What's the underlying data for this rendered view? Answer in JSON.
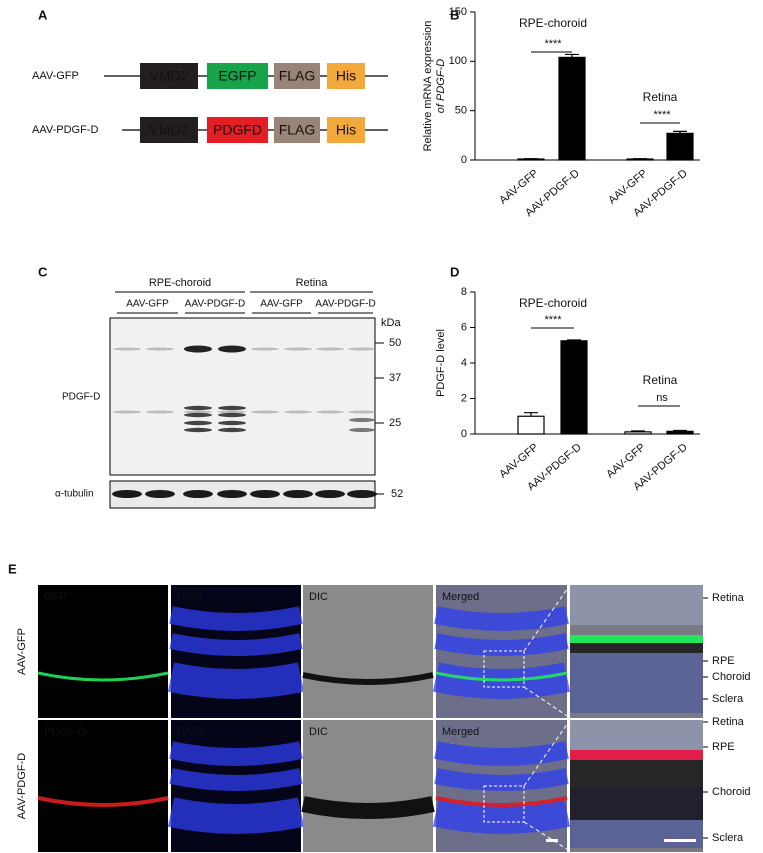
{
  "panel_labels": [
    "A",
    "B",
    "C",
    "D",
    "E"
  ],
  "constructs": [
    {
      "name": "AAV-GFP",
      "elements": [
        "VMD2",
        "EGFP",
        "FLAG",
        "His"
      ]
    },
    {
      "name": "AAV-PDGF-D",
      "elements": [
        "VMD2",
        "PDGFD",
        "FLAG",
        "His"
      ]
    }
  ],
  "chart_data": [
    {
      "type": "bar",
      "ylabel": [
        "Relative mRNA expression",
        "of PDGF-D"
      ],
      "categories": [
        "AAV-GFP",
        "AAV-PDGF-D",
        "AAV-GFP",
        "AAV-PDGF-D"
      ],
      "values": [
        1,
        104,
        1,
        27
      ],
      "errors": [
        0.3,
        3,
        0.3,
        2
      ],
      "colors": [
        "#000000",
        "#000000",
        "#000000",
        "#000000"
      ],
      "ylim": [
        0,
        150
      ],
      "yticks": [
        0,
        50,
        100,
        150
      ],
      "groups": [
        "RPE-choroid",
        "Retina"
      ],
      "annotations": [
        "****",
        "****"
      ]
    },
    {
      "type": "bar",
      "ylabel": [
        "PDGF-D level"
      ],
      "categories": [
        "AAV-GFP",
        "AAV-PDGF-D",
        "AAV-GFP",
        "AAV-PDGF-D"
      ],
      "values": [
        1.0,
        5.25,
        0.12,
        0.15
      ],
      "errors": [
        0.2,
        0.05,
        0.05,
        0.05
      ],
      "colors": [
        "#ffffff",
        "#000000",
        "#ffffff",
        "#000000"
      ],
      "ylim": [
        0,
        8
      ],
      "yticks": [
        0,
        2,
        4,
        6,
        8
      ],
      "groups": [
        "RPE-choroid",
        "Retina"
      ],
      "annotations": [
        "****",
        "ns"
      ]
    }
  ],
  "blot": {
    "groups": [
      "RPE-choroid",
      "Retina"
    ],
    "subgroups": [
      "AAV-GFP",
      "AAV-PDGF-D",
      "AAV-GFP",
      "AAV-PDGF-D"
    ],
    "unit": "kDa",
    "markers": [
      "50",
      "37",
      "25"
    ],
    "rows": [
      "PDGF-D",
      "α-tubulin"
    ],
    "tubulin_marker": "52"
  },
  "images": {
    "rows": [
      "AAV-GFP",
      "AAV-PDGF-D"
    ],
    "channels": [
      [
        "GFP",
        "DAPI",
        "DIC",
        "Merged"
      ],
      [
        "PDGF-D",
        "DAPI",
        "DIC",
        "Merged"
      ]
    ],
    "layers": [
      "Retina",
      "RPE",
      "Choroid",
      "Sclera"
    ]
  }
}
